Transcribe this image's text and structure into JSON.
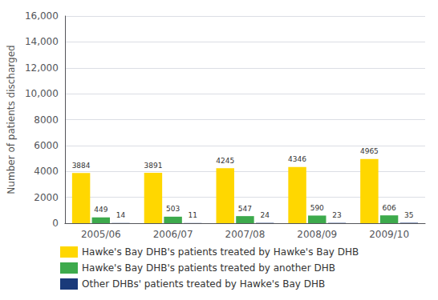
{
  "chart_data": {
    "type": "bar",
    "categories": [
      "2005/06",
      "2006/07",
      "2007/08",
      "2008/09",
      "2009/10"
    ],
    "series": [
      {
        "name": "Hawke's Bay DHB's patients treated by Hawke's Bay DHB",
        "color": "#FFD700",
        "values": [
          3884,
          3891,
          4245,
          4346,
          4965
        ]
      },
      {
        "name": "Hawke's Bay DHB's patients treated by another DHB",
        "color": "#3DAA4C",
        "values": [
          449,
          503,
          547,
          590,
          606
        ]
      },
      {
        "name": "Other DHBs' patients treated by Hawke's Bay DHB",
        "color": "#1A3A7A",
        "values": [
          14,
          11,
          24,
          23,
          35
        ]
      }
    ],
    "ylabel": "Number of patients discharged",
    "ylim": [
      0,
      16000
    ],
    "yticks": [
      0,
      2000,
      4000,
      6000,
      8000,
      {
        "value": 10000,
        "label": "10,000"
      },
      {
        "value": 12000,
        "label": "12,000"
      },
      {
        "value": 14000,
        "label": "14,000"
      },
      {
        "value": 16000,
        "label": "16,000"
      }
    ],
    "grid": true,
    "legend": "lower left",
    "data_labels": true
  }
}
